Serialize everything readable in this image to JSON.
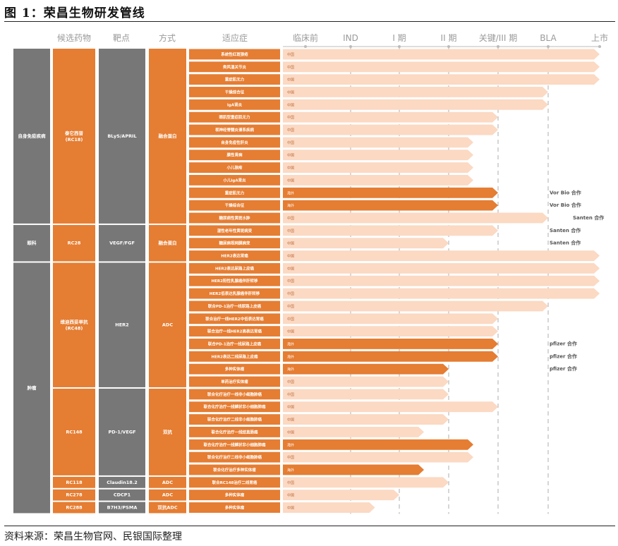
{
  "title": "图 1：荣昌生物研发管线",
  "source": "资料来源：荣昌生物官网、民银国际整理",
  "colors": {
    "orange": "#e57d32",
    "gray": "#777777",
    "light_bar": "#fbd9c3",
    "dark_bar": "#e57d32"
  },
  "headers": {
    "candidate": "候选药物",
    "target": "靶点",
    "modality": "方式",
    "indication": "适应症"
  },
  "chart_data": {
    "type": "bar",
    "stages": [
      "临床前",
      "IND",
      "I 期",
      "II 期",
      "关键/III 期",
      "BLA",
      "上市"
    ],
    "groups": [
      {
        "area": "自身免疫疾病",
        "rows": [
          0,
          14
        ]
      },
      {
        "area": "眼科",
        "rows": [
          14,
          17
        ]
      },
      {
        "area": "肿瘤",
        "rows": [
          17,
          37
        ]
      }
    ],
    "drugs": [
      {
        "name": "泰它西普 (RC18)",
        "target": "BLyS/APRIL",
        "modality": "融合蛋白",
        "rows": [
          0,
          14
        ]
      },
      {
        "name": "RC28",
        "target": "VEGF/FGF",
        "modality": "融合蛋白",
        "rows": [
          14,
          17
        ]
      },
      {
        "name": "维迪西妥单抗 (RC48)",
        "target": "HER2",
        "modality": "ADC",
        "rows": [
          17,
          27
        ]
      },
      {
        "name": "RC148",
        "target": "PD-1/VEGF",
        "modality": "双抗",
        "rows": [
          27,
          34
        ]
      },
      {
        "name": "RC118",
        "target": "Claudin18.2",
        "modality": "ADC",
        "rows": [
          34,
          35
        ]
      },
      {
        "name": "RC278",
        "target": "CDCP1",
        "modality": "ADC",
        "rows": [
          35,
          36
        ]
      },
      {
        "name": "RC288",
        "target": "B7H3/PSMA",
        "modality": "双抗ADC",
        "rows": [
          36,
          37
        ]
      }
    ],
    "rows": [
      {
        "indication": "系统性红斑狼疮",
        "region": "中国",
        "stage": 6.0,
        "overseas": false,
        "partner": ""
      },
      {
        "indication": "类风湿关节炎",
        "region": "中国",
        "stage": 6.0,
        "overseas": false,
        "partner": ""
      },
      {
        "indication": "重症肌无力",
        "region": "中国",
        "stage": 6.0,
        "overseas": false,
        "partner": ""
      },
      {
        "indication": "干燥综合征",
        "region": "中国",
        "stage": 5.0,
        "overseas": false,
        "partner": ""
      },
      {
        "indication": "IgA肾炎",
        "region": "中国",
        "stage": 5.0,
        "overseas": false,
        "partner": ""
      },
      {
        "indication": "眼肌型重症肌无力",
        "region": "中国",
        "stage": 4.0,
        "overseas": false,
        "partner": ""
      },
      {
        "indication": "视神经脊髓炎谱系疾病",
        "region": "中国",
        "stage": 4.0,
        "overseas": false,
        "partner": ""
      },
      {
        "indication": "自身免疫性肝炎",
        "region": "中国",
        "stage": 3.5,
        "overseas": false,
        "partner": ""
      },
      {
        "indication": "膜性肾病",
        "region": "中国",
        "stage": 3.5,
        "overseas": false,
        "partner": ""
      },
      {
        "indication": "小儿狼疮",
        "region": "中国",
        "stage": 3.5,
        "overseas": false,
        "partner": ""
      },
      {
        "indication": "小儿IgA肾炎",
        "region": "中国",
        "stage": 3.5,
        "overseas": false,
        "partner": ""
      },
      {
        "indication": "重症肌无力",
        "region": "海外",
        "stage": 4.0,
        "overseas": true,
        "partner": "Vor Bio 合作"
      },
      {
        "indication": "干燥综合征",
        "region": "海外",
        "stage": 4.0,
        "overseas": true,
        "partner": "Vor Bio 合作"
      },
      {
        "indication": "糖尿病性黄斑水肿",
        "region": "中国",
        "stage": 5.0,
        "overseas": false,
        "partner": "Santen 合作"
      },
      {
        "indication": "湿性老年性黄斑病变",
        "region": "中国",
        "stage": 4.0,
        "overseas": false,
        "partner": "Santen 合作"
      },
      {
        "indication": "糖尿病视网膜病变",
        "region": "中国",
        "stage": 3.0,
        "overseas": false,
        "partner": "Santen 合作"
      },
      {
        "indication": "HER2表达胃癌",
        "region": "中国",
        "stage": 6.0,
        "overseas": false,
        "partner": ""
      },
      {
        "indication": "HER2表达尿路上皮癌",
        "region": "中国",
        "stage": 6.0,
        "overseas": false,
        "partner": ""
      },
      {
        "indication": "HER2阳性乳腺癌伴肝转移",
        "region": "中国",
        "stage": 6.0,
        "overseas": false,
        "partner": ""
      },
      {
        "indication": "HER2低表达乳腺癌伴肝转移",
        "region": "中国",
        "stage": 6.0,
        "overseas": false,
        "partner": ""
      },
      {
        "indication": "联合PD-1治疗一线尿路上皮癌",
        "region": "中国",
        "stage": 5.0,
        "overseas": false,
        "partner": ""
      },
      {
        "indication": "联合治疗一线HER2中低表达胃癌",
        "region": "中国",
        "stage": 4.0,
        "overseas": false,
        "partner": ""
      },
      {
        "indication": "联合治疗一线HER2高表达胃癌",
        "region": "中国",
        "stage": 4.0,
        "overseas": false,
        "partner": ""
      },
      {
        "indication": "联合PD-1治疗一线尿路上皮癌",
        "region": "海外",
        "stage": 4.0,
        "overseas": true,
        "partner": "pfizer 合作"
      },
      {
        "indication": "HER2表达二线尿路上皮癌",
        "region": "海外",
        "stage": 4.0,
        "overseas": true,
        "partner": "pfizer 合作"
      },
      {
        "indication": "多种实体瘤",
        "region": "海外",
        "stage": 3.0,
        "overseas": true,
        "partner": "pfizer 合作"
      },
      {
        "indication": "单药治疗实体瘤",
        "region": "中国",
        "stage": 3.0,
        "overseas": false,
        "partner": ""
      },
      {
        "indication": "联合化疗治疗一线非小细胞肺癌",
        "region": "中国",
        "stage": 3.0,
        "overseas": false,
        "partner": ""
      },
      {
        "indication": "联合化疗治疗一线鳞状非小细胞肺癌",
        "region": "中国",
        "stage": 4.0,
        "overseas": false,
        "partner": ""
      },
      {
        "indication": "联合化疗治疗二线非小细胞肺癌",
        "region": "中国",
        "stage": 3.0,
        "overseas": false,
        "partner": ""
      },
      {
        "indication": "联合化疗治疗一线结直肠癌",
        "region": "中国",
        "stage": 2.5,
        "overseas": false,
        "partner": ""
      },
      {
        "indication": "联合化疗治疗一线鳞状非小细胞肺癌",
        "region": "海外",
        "stage": 3.5,
        "overseas": true,
        "partner": ""
      },
      {
        "indication": "联合化疗治疗二线非小细胞肺癌",
        "region": "中国",
        "stage": 3.5,
        "overseas": false,
        "partner": ""
      },
      {
        "indication": "联合化疗治疗多种实体瘤",
        "region": "海外",
        "stage": 2.5,
        "overseas": true,
        "partner": ""
      },
      {
        "indication": "联合RC148治疗二线胃癌",
        "region": "中国",
        "stage": 3.0,
        "overseas": false,
        "partner": ""
      },
      {
        "indication": "多种实体瘤",
        "region": "中国",
        "stage": 2.0,
        "overseas": false,
        "partner": ""
      },
      {
        "indication": "多种实体瘤",
        "region": "中国",
        "stage": 1.5,
        "overseas": false,
        "partner": ""
      }
    ]
  }
}
